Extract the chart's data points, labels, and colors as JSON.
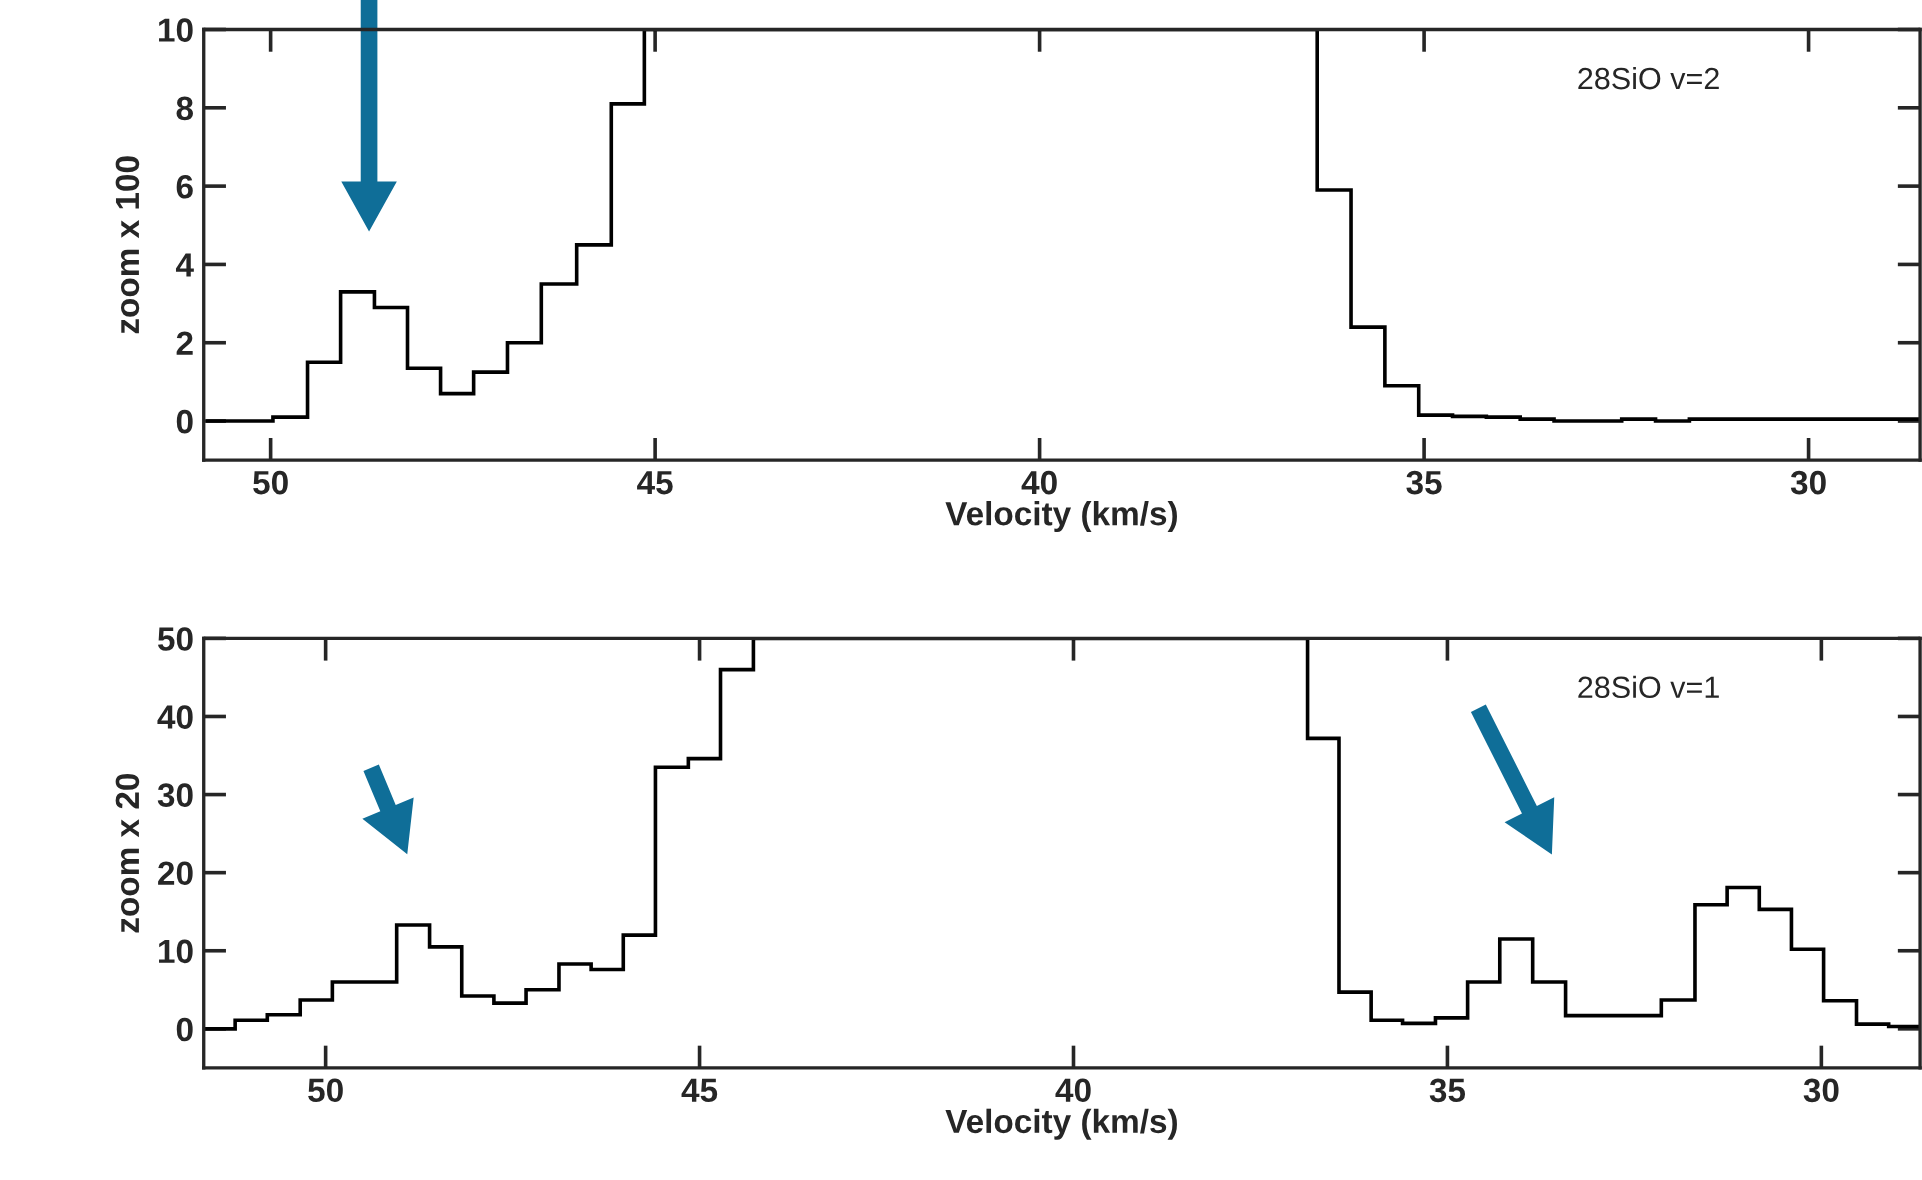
{
  "chart_data": [
    {
      "type": "histogram",
      "xlabel": "Velocity (km/s)",
      "ylabel": "zoom x 100",
      "annotations": [
        "28SiO v=2"
      ],
      "bins": [
        50.84,
        50.4,
        49.97,
        49.52,
        49.09,
        48.65,
        48.22,
        47.79,
        47.36,
        46.92,
        46.48,
        46.02,
        45.57,
        45.14,
        36.39,
        35.95,
        35.51,
        35.07,
        34.63,
        34.19,
        33.75,
        33.31,
        32.87,
        32.43,
        31.99,
        31.55,
        31.11,
        30.67,
        30.23,
        29.79,
        29.35,
        28.91,
        28.55
      ],
      "values": [
        0,
        0,
        0.1,
        1.5,
        3.3,
        2.9,
        1.35,
        0.7,
        1.25,
        2.0,
        3.5,
        4.5,
        8.1,
        10,
        5.9,
        2.4,
        0.9,
        0.15,
        0.12,
        0.1,
        0.05,
        0,
        0,
        0.05,
        0,
        0.05,
        0.05,
        0.05,
        0.05,
        0.05,
        0.05,
        0.05
      ],
      "color": "#000000",
      "xlim": [
        50.87,
        28.55
      ],
      "ylim": [
        -1,
        10
      ],
      "xticks": [
        50,
        45,
        40,
        35,
        30
      ],
      "yticks": [
        0,
        2,
        4,
        6,
        8,
        10
      ],
      "grid": false,
      "legend": false
    },
    {
      "type": "histogram",
      "xlabel": "Velocity (km/s)",
      "ylabel": "zoom x 20",
      "annotations": [
        "28SiO v=1"
      ],
      "bins": [
        51.63,
        51.21,
        50.78,
        50.34,
        49.91,
        49.48,
        49.05,
        48.61,
        48.18,
        47.75,
        47.32,
        46.88,
        46.45,
        46.02,
        45.59,
        45.15,
        44.72,
        44.28,
        36.87,
        36.45,
        36.02,
        35.6,
        35.16,
        34.73,
        34.3,
        33.86,
        33.42,
        32.99,
        32.56,
        32.14,
        31.69,
        31.26,
        30.83,
        30.4,
        29.97,
        29.53,
        29.1,
        28.68
      ],
      "values": [
        0,
        1.1,
        1.8,
        3.7,
        6,
        6,
        13.3,
        10.5,
        4.2,
        3.3,
        5.0,
        8.3,
        7.6,
        12,
        33.5,
        34.6,
        46,
        50,
        37.2,
        4.7,
        1.1,
        0.7,
        1.4,
        6.0,
        11.5,
        6.0,
        1.7,
        1.7,
        1.7,
        3.7,
        15.9,
        18.1,
        15.3,
        10.2,
        3.6,
        0.6,
        0.3
      ],
      "color": "#000000",
      "xlim": [
        51.63,
        28.68
      ],
      "ylim": [
        -5,
        50
      ],
      "xticks": [
        50,
        45,
        40,
        35,
        30
      ],
      "yticks": [
        0,
        10,
        20,
        30,
        40,
        50
      ],
      "grid": false,
      "legend": false
    }
  ]
}
